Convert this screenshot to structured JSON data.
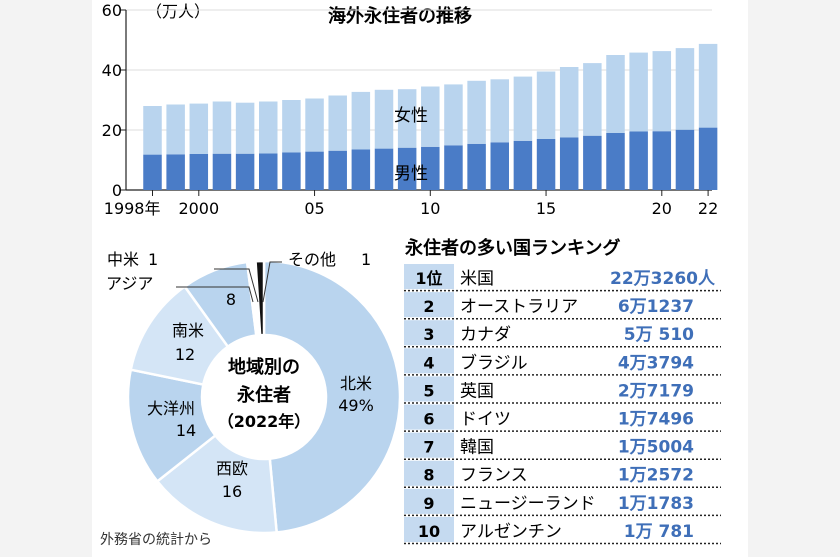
{
  "source_note": "外務省の統計から",
  "chart_data": [
    {
      "type": "bar",
      "stacked": true,
      "title": "海外永住者の推移",
      "unit_label": "（万人）",
      "y_ticks": [
        "0",
        "20",
        "40",
        "60"
      ],
      "ylim": [
        0,
        60
      ],
      "x_tick_labels": [
        {
          "year": 1998,
          "label": "1998年"
        },
        {
          "year": 2000,
          "label": "2000"
        },
        {
          "year": 2005,
          "label": "05"
        },
        {
          "year": 2010,
          "label": "10"
        },
        {
          "year": 2015,
          "label": "15"
        },
        {
          "year": 2020,
          "label": "20"
        },
        {
          "year": 2022,
          "label": "22"
        }
      ],
      "categories": [
        1998,
        1999,
        2000,
        2001,
        2002,
        2003,
        2004,
        2005,
        2006,
        2007,
        2008,
        2009,
        2010,
        2011,
        2012,
        2013,
        2014,
        2015,
        2016,
        2017,
        2018,
        2019,
        2020,
        2021,
        2022
      ],
      "series": [
        {
          "name": "男性",
          "color": "#4a7cc7",
          "values": [
            11.8,
            11.9,
            12.0,
            12.1,
            12.1,
            12.2,
            12.5,
            12.8,
            13.1,
            13.5,
            13.8,
            14.1,
            14.4,
            14.9,
            15.4,
            15.9,
            16.4,
            17.0,
            17.5,
            18.1,
            19.0,
            19.5,
            19.6,
            20.1,
            20.8
          ]
        },
        {
          "name": "女性",
          "color": "#b9d4ee",
          "values": [
            16.2,
            16.6,
            16.8,
            17.4,
            17.0,
            17.3,
            17.5,
            17.7,
            18.4,
            19.2,
            19.6,
            19.5,
            20.1,
            20.3,
            21.0,
            21.0,
            21.4,
            22.5,
            23.5,
            24.2,
            26.0,
            26.3,
            26.7,
            27.2,
            27.9
          ]
        }
      ]
    },
    {
      "type": "pie",
      "variant": "donut",
      "center_label_lines": [
        "地域別の",
        "永住者",
        "（2022年）"
      ],
      "slices": [
        {
          "name": "北米",
          "value": 49,
          "display": "49%",
          "color": "#b9d4ee"
        },
        {
          "name": "西欧",
          "value": 16,
          "display": "16",
          "color": "#d4e5f6"
        },
        {
          "name": "大洋州",
          "value": 14,
          "display": "14",
          "color": "#b9d4ee"
        },
        {
          "name": "南米",
          "value": 12,
          "display": "12",
          "color": "#d4e5f6"
        },
        {
          "name": "アジア",
          "value": 8,
          "display": "8",
          "color": "#b9d4ee"
        },
        {
          "name": "中米",
          "value": 1,
          "display": "1",
          "color": "#ffffff"
        },
        {
          "name": "その他",
          "value": 1,
          "display": "1",
          "color": "#111111"
        }
      ]
    },
    {
      "type": "table",
      "title": "永住者の多い国ランキング",
      "rows": [
        {
          "rank": "1位",
          "country": "米国",
          "value": "22万3260人",
          "count": 223260
        },
        {
          "rank": "2",
          "country": "オーストラリア",
          "value": "6万1237",
          "count": 61237
        },
        {
          "rank": "3",
          "country": "カナダ",
          "value": "5万 510",
          "count": 50510
        },
        {
          "rank": "4",
          "country": "ブラジル",
          "value": "4万3794",
          "count": 43794
        },
        {
          "rank": "5",
          "country": "英国",
          "value": "2万7179",
          "count": 27179
        },
        {
          "rank": "6",
          "country": "ドイツ",
          "value": "1万7496",
          "count": 17496
        },
        {
          "rank": "7",
          "country": "韓国",
          "value": "1万5004",
          "count": 15004
        },
        {
          "rank": "8",
          "country": "フランス",
          "value": "1万2572",
          "count": 12572
        },
        {
          "rank": "9",
          "country": "ニュージーランド",
          "value": "1万1783",
          "count": 11783
        },
        {
          "rank": "10",
          "country": "アルゼンチン",
          "value": "1万 781",
          "count": 10781
        }
      ]
    }
  ]
}
